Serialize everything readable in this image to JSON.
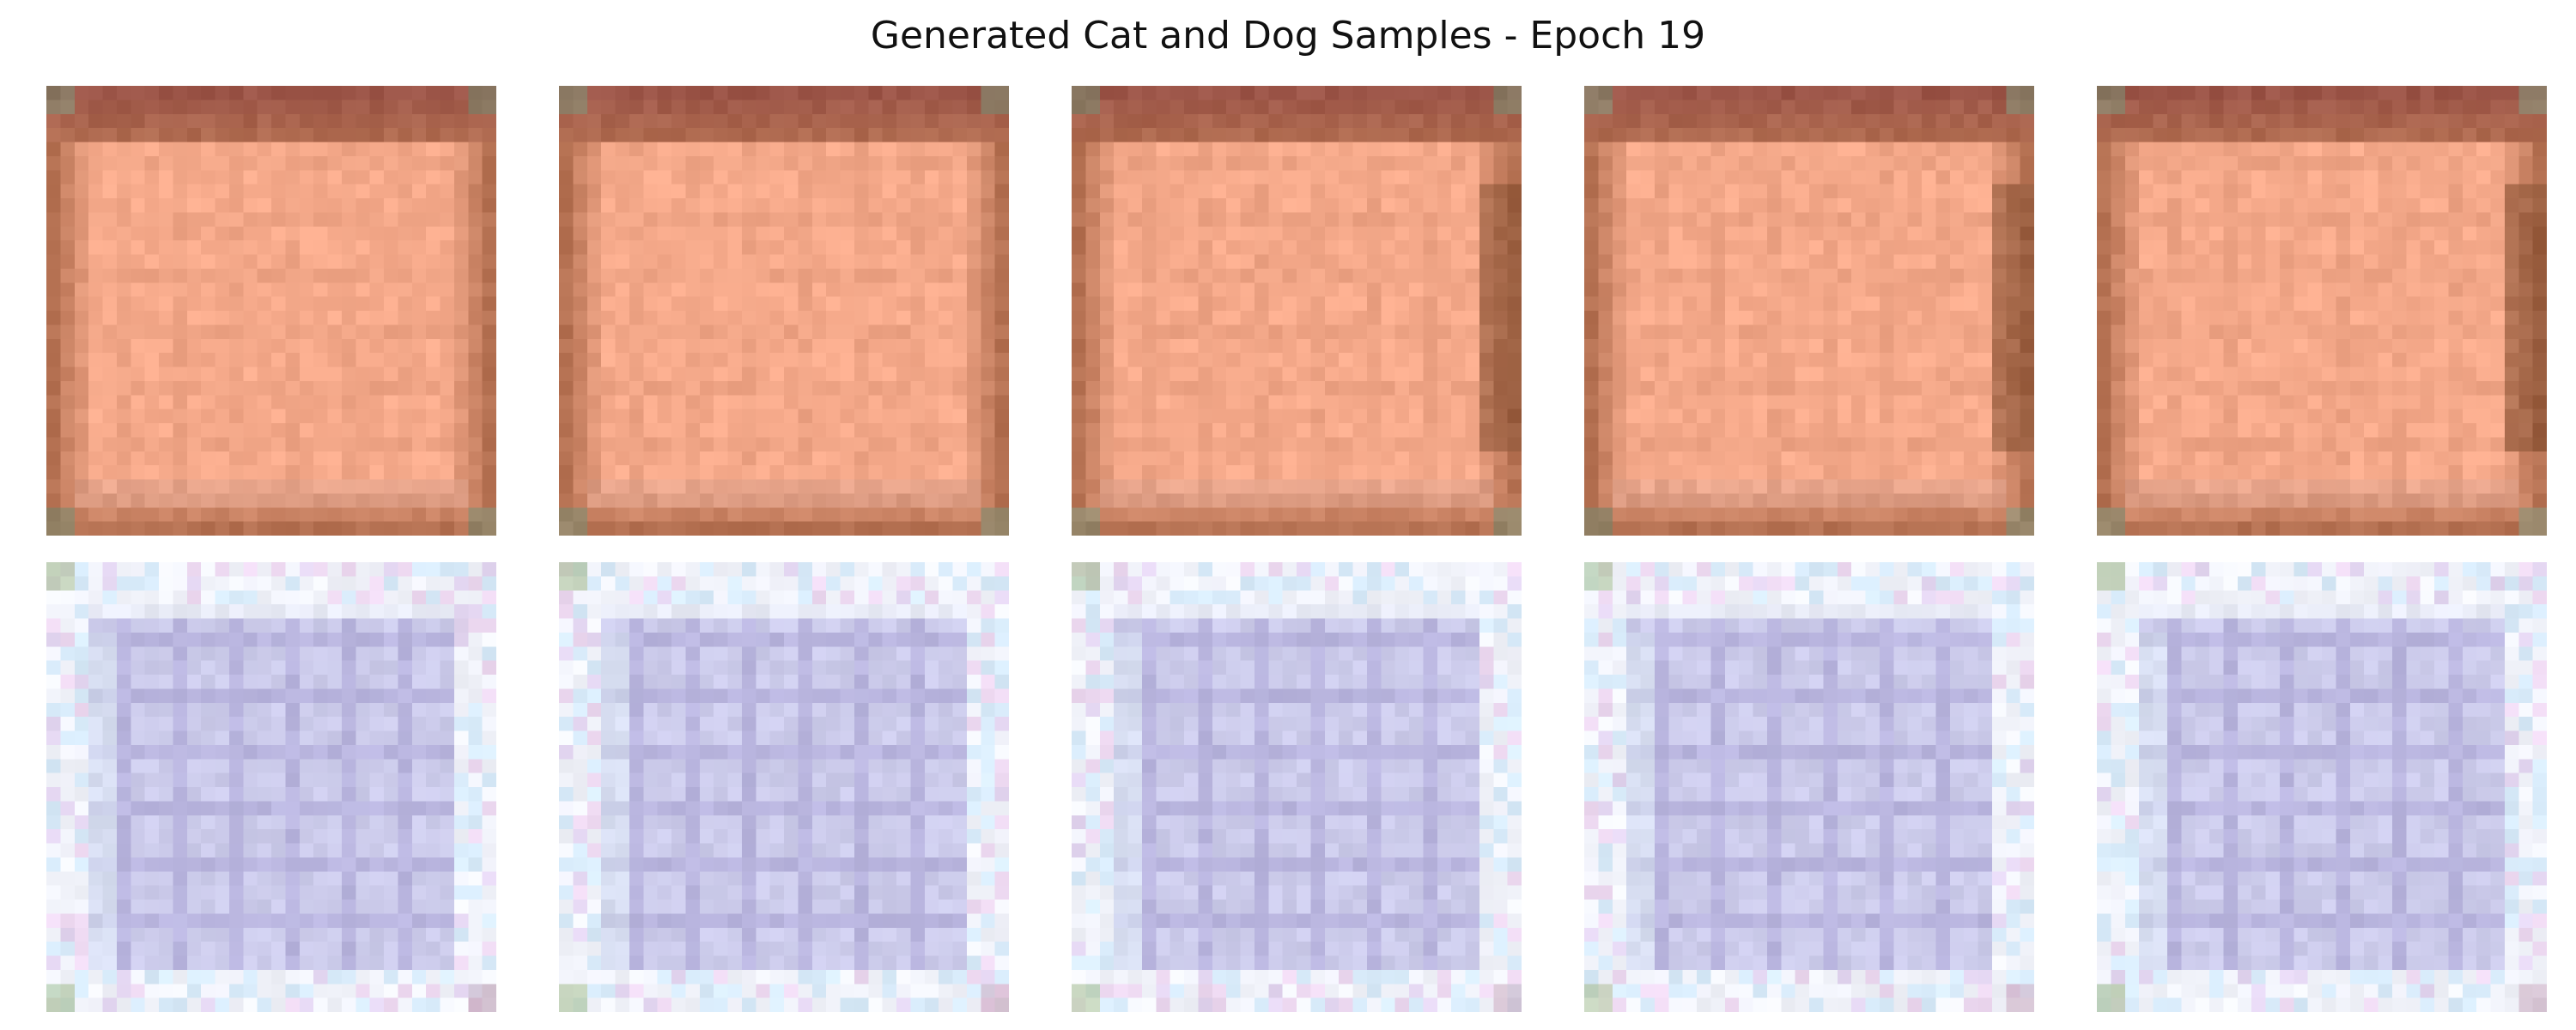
{
  "figure": {
    "title": "Generated Cat and Dog Samples - Epoch 19"
  },
  "samples": [
    {
      "row": 0,
      "col": 0,
      "description": "orange-peach square with brown border",
      "palette": {
        "inner": "#f7ab8c",
        "border": "#b57152",
        "top": "#9c5548",
        "corner": "#7f8f74"
      }
    },
    {
      "row": 0,
      "col": 1,
      "description": "orange-peach square with brown border",
      "palette": {
        "inner": "#f7ab8c",
        "border": "#b57152",
        "top": "#9c5548",
        "corner": "#7f8f74"
      }
    },
    {
      "row": 0,
      "col": 2,
      "description": "orange-peach square with brown border, darker right edge",
      "palette": {
        "inner": "#f7ab8c",
        "border": "#b57152",
        "top": "#9c5548",
        "corner": "#7f8f74"
      }
    },
    {
      "row": 0,
      "col": 3,
      "description": "orange-peach square with brown border, darker right edge",
      "palette": {
        "inner": "#f7ab8c",
        "border": "#b57152",
        "top": "#9c5548",
        "corner": "#7f8f74"
      }
    },
    {
      "row": 0,
      "col": 4,
      "description": "orange-peach square with brown border",
      "palette": {
        "inner": "#f7ab8c",
        "border": "#b57152",
        "top": "#9c5548",
        "corner": "#7f8f74"
      }
    },
    {
      "row": 1,
      "col": 0,
      "description": "lavender grid pattern on pale background",
      "palette": {
        "inner": "#b9b8e2",
        "border": "#e9ecf8",
        "top": "#dfe3f3",
        "corner": "#b5c9a6"
      }
    },
    {
      "row": 1,
      "col": 1,
      "description": "lavender grid pattern on pale background",
      "palette": {
        "inner": "#b9b8e2",
        "border": "#e9ecf8",
        "top": "#dfe3f3",
        "corner": "#b5c9a6"
      }
    },
    {
      "row": 1,
      "col": 2,
      "description": "lavender grid pattern on pale background",
      "palette": {
        "inner": "#b9b8e2",
        "border": "#e9ecf8",
        "top": "#dfe3f3",
        "corner": "#b5c9a6"
      }
    },
    {
      "row": 1,
      "col": 3,
      "description": "lavender grid pattern on pale background",
      "palette": {
        "inner": "#b9b8e2",
        "border": "#e9ecf8",
        "top": "#dfe3f3",
        "corner": "#b5c9a6"
      }
    },
    {
      "row": 1,
      "col": 4,
      "description": "lavender grid pattern on pale background",
      "palette": {
        "inner": "#b9b8e2",
        "border": "#e9ecf8",
        "top": "#dfe3f3",
        "corner": "#b5c9a6"
      }
    }
  ]
}
